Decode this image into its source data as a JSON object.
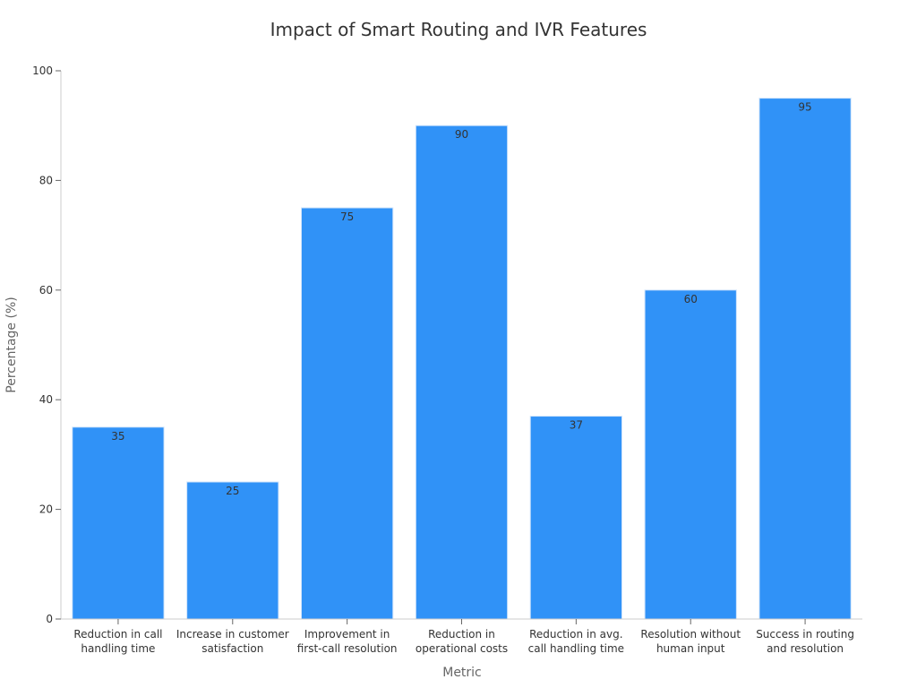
{
  "chart_data": {
    "type": "bar",
    "title": "Impact of Smart Routing and IVR Features",
    "xlabel": "Metric",
    "ylabel": "Percentage (%)",
    "categories": [
      [
        "Reduction in call",
        "handling time"
      ],
      [
        "Increase in customer",
        "satisfaction"
      ],
      [
        "Improvement in",
        "first-call resolution"
      ],
      [
        "Reduction in",
        "operational costs"
      ],
      [
        "Reduction in avg.",
        "call handling time"
      ],
      [
        "Resolution without",
        "human input"
      ],
      [
        "Success in routing",
        "and resolution"
      ]
    ],
    "values": [
      35,
      25,
      75,
      90,
      37,
      60,
      95
    ],
    "ylim": [
      0,
      100
    ],
    "yticks": [
      0,
      20,
      40,
      60,
      80,
      100
    ],
    "bar_color": "#3092f7",
    "grid": false,
    "legend": "none"
  }
}
